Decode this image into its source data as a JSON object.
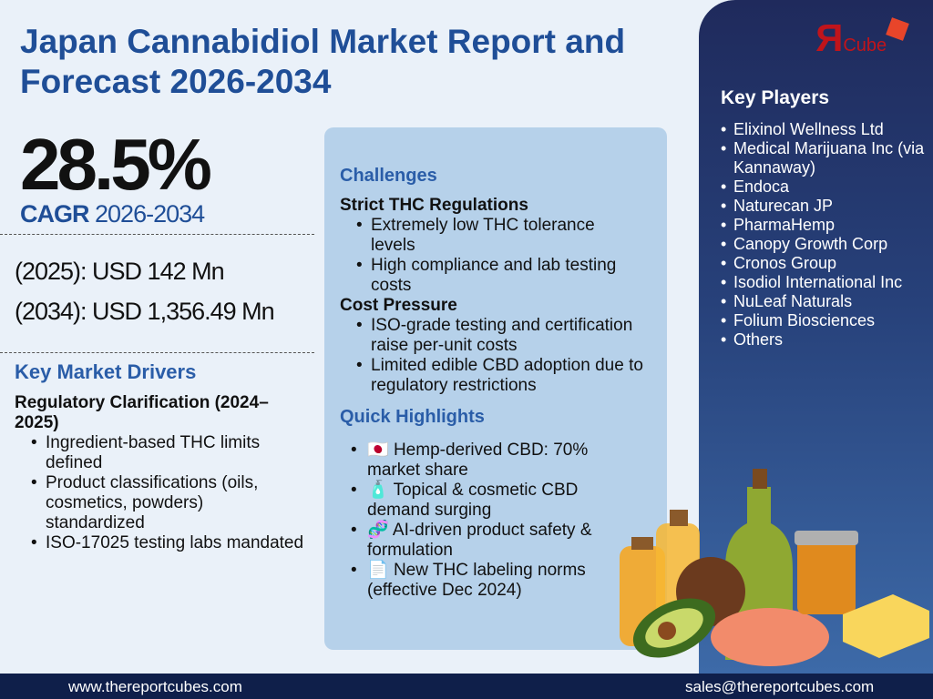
{
  "title": "Japan Cannabidiol Market Report and Forecast 2026-2034",
  "cagr": {
    "value": "28.5%",
    "label": "CAGR",
    "period": "2026-2034"
  },
  "market_size": [
    "(2025): USD 142 Mn",
    "(2034): USD 1,356.49 Mn"
  ],
  "drivers": {
    "heading": "Key Market Drivers",
    "subheading": "Regulatory Clarification (2024–2025)",
    "items": [
      "Ingredient-based THC limits defined",
      "Product classifications (oils, cosmetics, powders) standardized",
      "ISO-17025 testing labs mandated"
    ]
  },
  "challenges": {
    "heading": "Challenges",
    "groups": [
      {
        "title": "Strict THC Regulations",
        "items": [
          "Extremely low THC tolerance levels",
          "High compliance and lab testing costs"
        ]
      },
      {
        "title": "Cost Pressure",
        "items": [
          "ISO-grade testing and certification raise per-unit costs",
          "Limited edible CBD adoption due to regulatory restrictions"
        ]
      }
    ]
  },
  "highlights": {
    "heading": "Quick Highlights",
    "items": [
      {
        "icon": "🇯🇵",
        "text": "Hemp-derived CBD: 70% market share"
      },
      {
        "icon": "🧴",
        "text": "Topical & cosmetic CBD demand surging"
      },
      {
        "icon": "🧬",
        "text": "AI-driven product safety & formulation"
      },
      {
        "icon": "📄",
        "text": "New THC labeling norms (effective Dec 2024)"
      }
    ]
  },
  "logo": {
    "mark": "R",
    "text": "Cube"
  },
  "key_players": {
    "heading": "Key Players",
    "items": [
      "Elixinol Wellness Ltd",
      "Medical Marijuana Inc (via Kannaway)",
      "Endoca",
      "Naturecan JP",
      "PharmaHemp",
      "Canopy Growth Corp",
      "Cronos Group",
      "Isodiol International Inc",
      "NuLeaf Naturals",
      "Folium Biosciences",
      "Others"
    ]
  },
  "footer": {
    "website": "www.thereportcubes.com",
    "email": "sales@thereportcubes.com"
  }
}
